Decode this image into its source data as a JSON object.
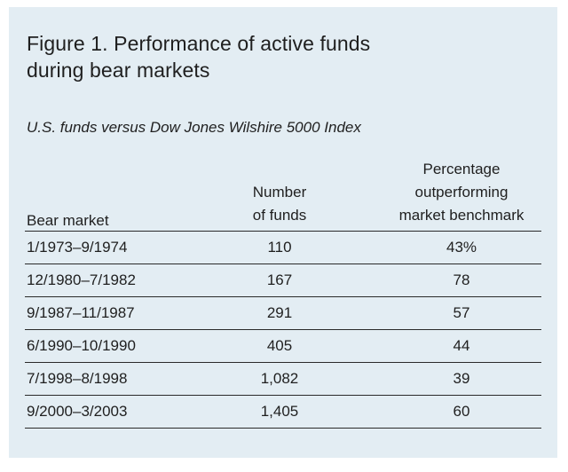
{
  "figure": {
    "title_line1": "Figure 1. Performance of active funds",
    "title_line2": "during bear markets",
    "subtitle": "U.S. funds versus Dow Jones Wilshire 5000 Index"
  },
  "table": {
    "headers": {
      "bear_market": "Bear market",
      "number_line1": "Number",
      "number_line2": "of funds",
      "pct_line1": "Percentage",
      "pct_line2": "outperforming",
      "pct_line3": "market benchmark"
    },
    "rows": [
      {
        "bear_market": "1/1973–9/1974",
        "number": "110",
        "pct": "43%"
      },
      {
        "bear_market": "12/1980–7/1982",
        "number": "167",
        "pct": "78"
      },
      {
        "bear_market": "9/1987–11/1987",
        "number": "291",
        "pct": "57"
      },
      {
        "bear_market": "6/1990–10/1990",
        "number": "405",
        "pct": "44"
      },
      {
        "bear_market": "7/1998–8/1998",
        "number": "1,082",
        "pct": "39"
      },
      {
        "bear_market": "9/2000–3/2003",
        "number": "1,405",
        "pct": "60"
      }
    ]
  },
  "colors": {
    "background": "#e3edf3",
    "text": "#1f1f1f",
    "rule": "#2a2a2a"
  }
}
